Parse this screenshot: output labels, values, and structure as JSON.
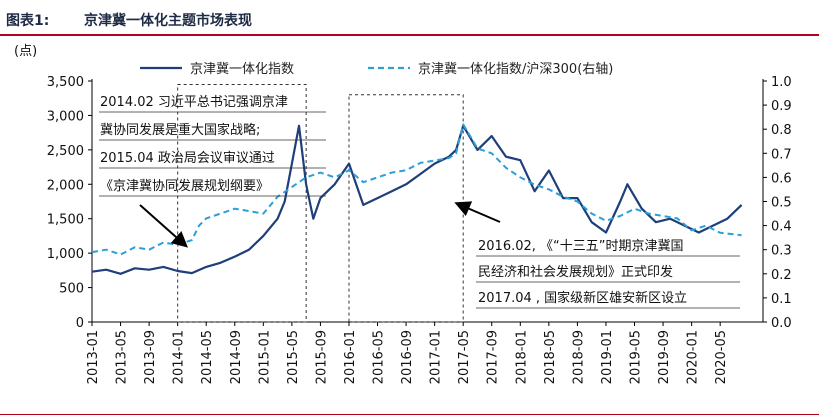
{
  "figure": {
    "label": "图表1:",
    "title": "京津冀一体化主题市场表现"
  },
  "chart_data": {
    "type": "line",
    "y_unit": "(点)",
    "ylim": [
      0,
      3500
    ],
    "y2lim": [
      0,
      1.0
    ],
    "y_ticks": [
      "0",
      "500",
      "1,000",
      "1,500",
      "2,000",
      "2,500",
      "3,000",
      "3,500"
    ],
    "y2_ticks": [
      "0.0",
      "0.1",
      "0.2",
      "0.3",
      "0.4",
      "0.5",
      "0.6",
      "0.7",
      "0.8",
      "0.9",
      "1.0"
    ],
    "x_ticks": [
      "2013-01",
      "2013-05",
      "2013-09",
      "2014-01",
      "2014-05",
      "2014-09",
      "2015-01",
      "2015-05",
      "2015-09",
      "2016-01",
      "2016-05",
      "2016-09",
      "2017-01",
      "2017-05",
      "2017-09",
      "2018-01",
      "2018-05",
      "2018-09",
      "2019-01",
      "2019-05",
      "2019-09",
      "2020-01",
      "2020-05"
    ],
    "series": [
      {
        "name": "京津冀一体化指数",
        "axis": "left",
        "color": "#1f3f7a",
        "style": "solid",
        "x": [
          "2013-01",
          "2013-03",
          "2013-05",
          "2013-07",
          "2013-09",
          "2013-11",
          "2014-01",
          "2014-03",
          "2014-05",
          "2014-07",
          "2014-09",
          "2014-11",
          "2015-01",
          "2015-03",
          "2015-04",
          "2015-05",
          "2015-06",
          "2015-07",
          "2015-08",
          "2015-09",
          "2015-11",
          "2016-01",
          "2016-03",
          "2016-05",
          "2016-07",
          "2016-09",
          "2016-11",
          "2017-01",
          "2017-03",
          "2017-04",
          "2017-05",
          "2017-07",
          "2017-09",
          "2017-11",
          "2018-01",
          "2018-03",
          "2018-05",
          "2018-07",
          "2018-09",
          "2018-11",
          "2019-01",
          "2019-03",
          "2019-04",
          "2019-06",
          "2019-08",
          "2019-10",
          "2019-12",
          "2020-02",
          "2020-04",
          "2020-06",
          "2020-08"
        ],
        "y": [
          730,
          760,
          700,
          780,
          760,
          800,
          740,
          710,
          800,
          860,
          950,
          1050,
          1250,
          1500,
          1750,
          2300,
          2850,
          2000,
          1500,
          1800,
          2000,
          2300,
          1700,
          1800,
          1900,
          2000,
          2150,
          2300,
          2400,
          2500,
          2850,
          2500,
          2700,
          2400,
          2350,
          1900,
          2200,
          1800,
          1800,
          1450,
          1300,
          1750,
          2000,
          1650,
          1450,
          1500,
          1400,
          1300,
          1400,
          1500,
          1700
        ]
      },
      {
        "name": "京津冀一体化指数/沪深300(右轴)",
        "axis": "right",
        "color": "#2a9fd8",
        "style": "dashed",
        "x": [
          "2013-01",
          "2013-03",
          "2013-05",
          "2013-07",
          "2013-09",
          "2013-11",
          "2014-01",
          "2014-03",
          "2014-04",
          "2014-05",
          "2014-07",
          "2014-09",
          "2014-11",
          "2015-01",
          "2015-03",
          "2015-05",
          "2015-06",
          "2015-07",
          "2015-09",
          "2015-11",
          "2016-01",
          "2016-03",
          "2016-05",
          "2016-07",
          "2016-09",
          "2016-11",
          "2017-01",
          "2017-03",
          "2017-04",
          "2017-05",
          "2017-07",
          "2017-09",
          "2017-11",
          "2018-01",
          "2018-03",
          "2018-05",
          "2018-07",
          "2018-09",
          "2018-11",
          "2019-01",
          "2019-03",
          "2019-05",
          "2019-07",
          "2019-09",
          "2019-11",
          "2020-01",
          "2020-03",
          "2020-05",
          "2020-08"
        ],
        "y": [
          0.29,
          0.3,
          0.28,
          0.31,
          0.3,
          0.33,
          0.32,
          0.34,
          0.4,
          0.43,
          0.45,
          0.47,
          0.46,
          0.45,
          0.52,
          0.56,
          0.58,
          0.6,
          0.62,
          0.6,
          0.63,
          0.58,
          0.6,
          0.62,
          0.63,
          0.66,
          0.67,
          0.68,
          0.7,
          0.82,
          0.72,
          0.7,
          0.64,
          0.6,
          0.57,
          0.55,
          0.52,
          0.5,
          0.45,
          0.42,
          0.44,
          0.47,
          0.45,
          0.44,
          0.43,
          0.38,
          0.4,
          0.37,
          0.36
        ]
      }
    ],
    "annotations": {
      "left": [
        "2014.02 习近平总书记强调京津",
        "冀协同发展是重大国家战略;",
        "2015.04 政治局会议审议通过",
        "《京津冀协同发展规划纲要》"
      ],
      "right": [
        "2016.02, 《“十三五”时期京津冀国",
        "民经济和社会发展规划》正式印发",
        "2017.04 , 国家级新区雄安新区设立"
      ]
    },
    "highlight_boxes": [
      {
        "from": "2014-01",
        "to": "2015-07",
        "y_top": 3450
      },
      {
        "from": "2016-01",
        "to": "2017-05",
        "y_top": 3300
      }
    ],
    "grid": false,
    "legend_position": "top"
  }
}
